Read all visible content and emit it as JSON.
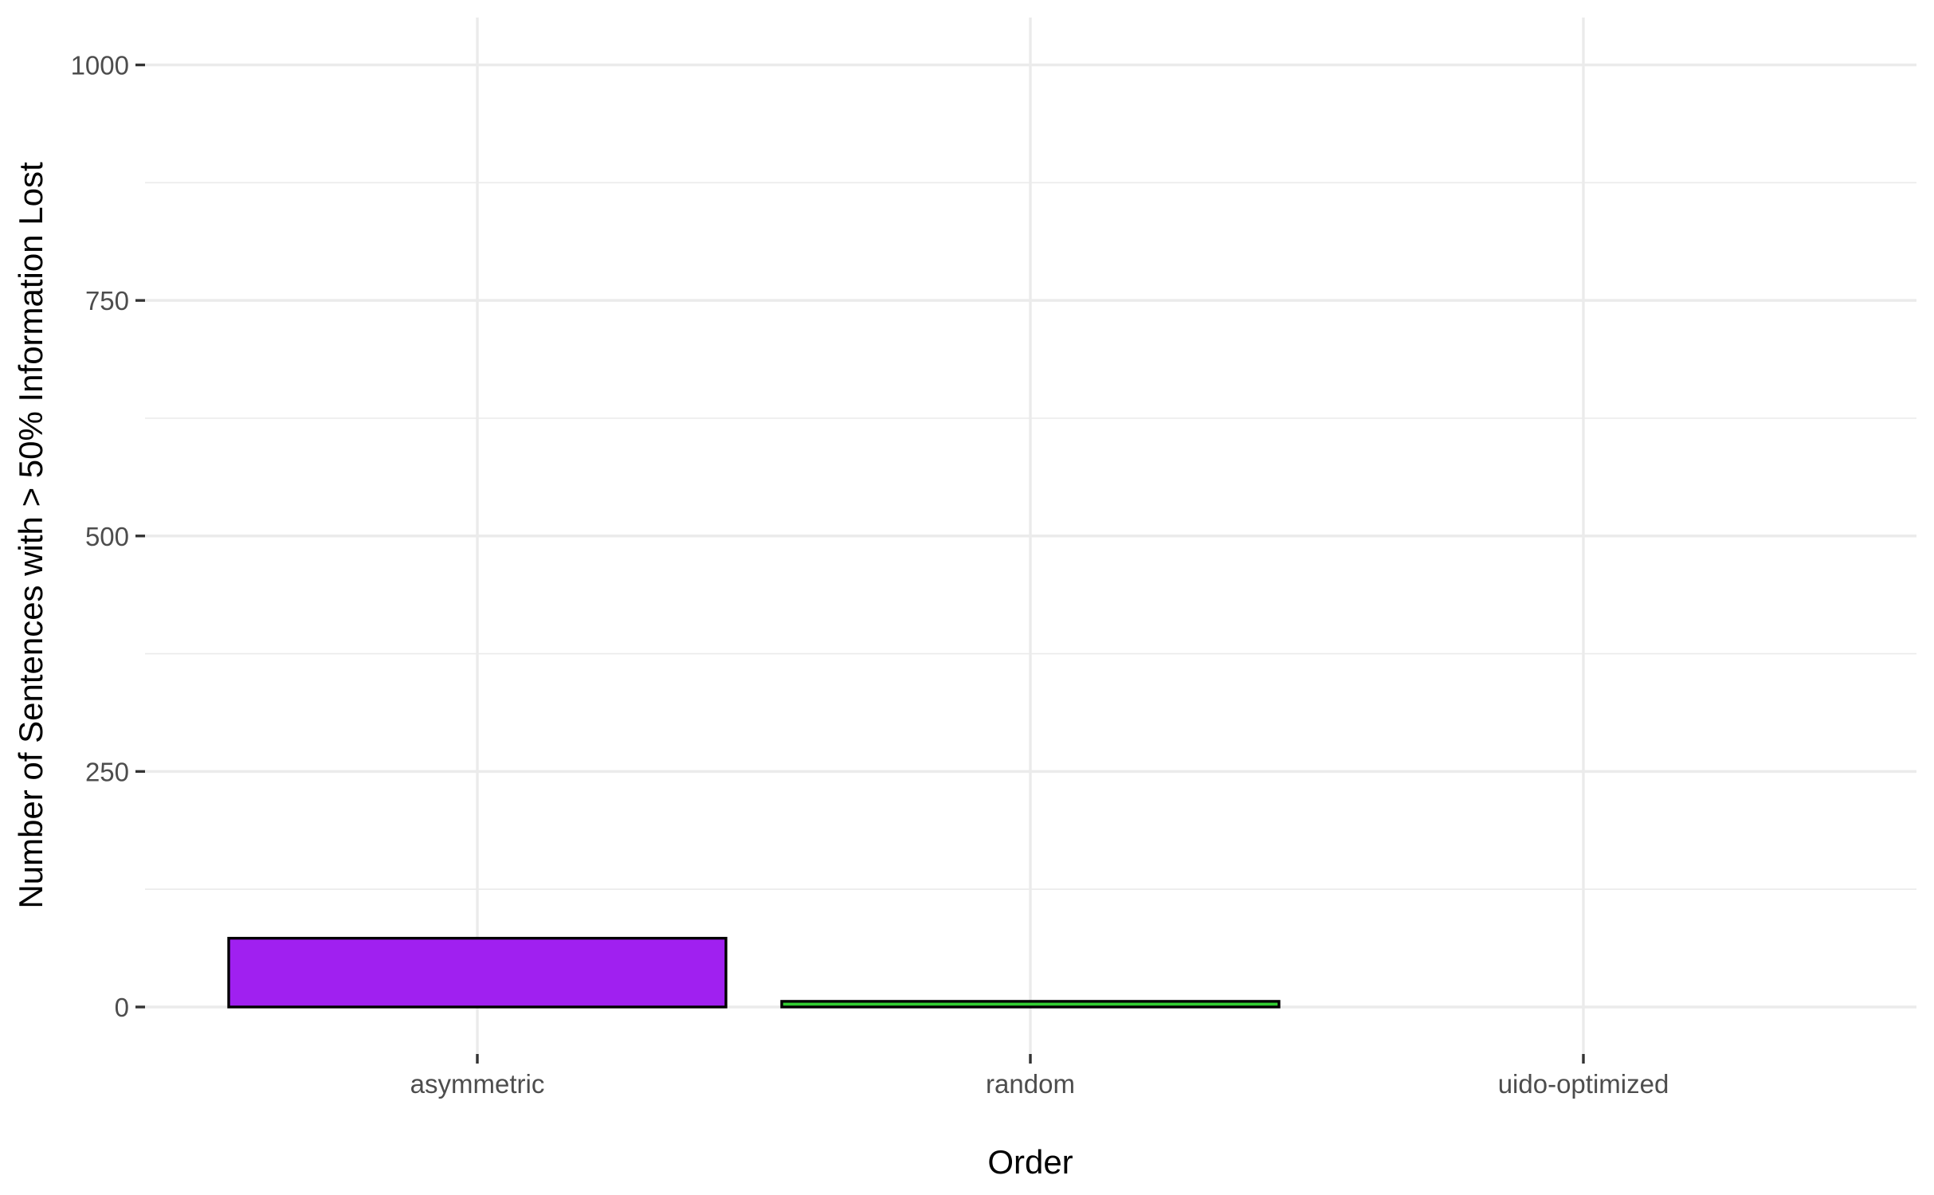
{
  "chart_data": {
    "type": "bar",
    "title": "",
    "xlabel": "Order",
    "ylabel": "Number of Sentences with > 50% Information Lost",
    "categories": [
      "asymmetric",
      "random",
      "uido-optimized"
    ],
    "values": [
      73,
      6,
      0
    ],
    "colors": [
      "#a020f0",
      "#32cd32",
      "#000000"
    ],
    "ylim": [
      0,
      1000
    ],
    "yticks": [
      0,
      250,
      500,
      750,
      1000
    ],
    "ytick_labels": [
      "0",
      "250",
      "500",
      "750",
      "1000"
    ],
    "grid": true,
    "legend": "none"
  }
}
